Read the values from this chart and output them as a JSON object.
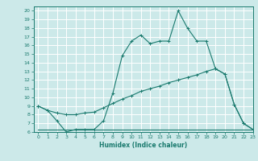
{
  "xlabel": "Humidex (Indice chaleur)",
  "xlim": [
    -0.5,
    23
  ],
  "ylim": [
    6,
    20.5
  ],
  "yticks": [
    6,
    7,
    8,
    9,
    10,
    11,
    12,
    13,
    14,
    15,
    16,
    17,
    18,
    19,
    20
  ],
  "xticks": [
    0,
    1,
    2,
    3,
    4,
    5,
    6,
    7,
    8,
    9,
    10,
    11,
    12,
    13,
    14,
    15,
    16,
    17,
    18,
    19,
    20,
    21,
    22,
    23
  ],
  "bg_color": "#cce9e9",
  "grid_color": "#ffffff",
  "line_color": "#1a7a6e",
  "line1_x": [
    0,
    1,
    2,
    3,
    4,
    5,
    6,
    7,
    8,
    9,
    10,
    11,
    12,
    13,
    14,
    15,
    16,
    17,
    18,
    19,
    20,
    21,
    22,
    23
  ],
  "line1_y": [
    9.0,
    8.5,
    7.3,
    6.0,
    6.3,
    6.3,
    6.3,
    7.3,
    10.5,
    14.8,
    16.5,
    17.2,
    16.2,
    16.5,
    16.5,
    20.0,
    18.0,
    16.5,
    16.5,
    13.3,
    12.7,
    9.2,
    7.0,
    6.3
  ],
  "line2_x": [
    0,
    1,
    2,
    3,
    4,
    5,
    6,
    7,
    8,
    9,
    10,
    11,
    12,
    13,
    14,
    15,
    16,
    17,
    18,
    19,
    20,
    21,
    22,
    23
  ],
  "line2_y": [
    9.0,
    8.5,
    8.2,
    8.0,
    8.0,
    8.2,
    8.3,
    8.8,
    9.3,
    9.8,
    10.2,
    10.7,
    11.0,
    11.3,
    11.7,
    12.0,
    12.3,
    12.6,
    13.0,
    13.3,
    12.7,
    9.2,
    7.0,
    6.3
  ],
  "line3_x": [
    0,
    23
  ],
  "line3_y": [
    6.3,
    6.3
  ]
}
